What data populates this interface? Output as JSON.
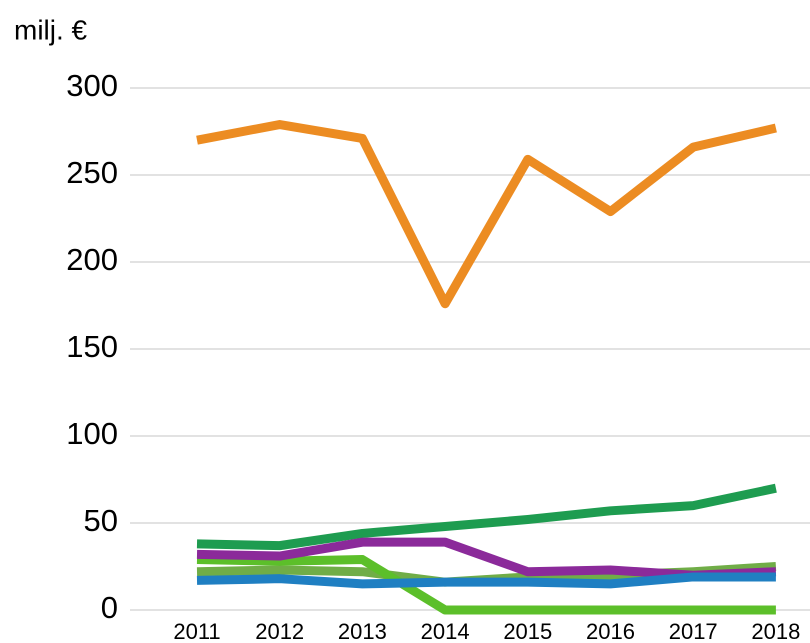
{
  "chart_data": {
    "type": "line",
    "title": "milj. €",
    "categories": [
      "2011",
      "2012",
      "2013",
      "2014",
      "2015",
      "2016",
      "2017",
      "2018"
    ],
    "series": [
      {
        "color": "#70ad47",
        "values": [
          22,
          23,
          22,
          16,
          19,
          20,
          22,
          25
        ]
      },
      {
        "color": "#5cbf2a",
        "values": [
          29,
          28,
          29,
          0,
          0,
          0,
          0,
          0
        ]
      },
      {
        "color": "#1e9c50",
        "values": [
          38,
          37,
          44,
          48,
          52,
          57,
          60,
          70
        ]
      },
      {
        "color": "#8b2a9a",
        "values": [
          32,
          31,
          39,
          39,
          22,
          23,
          20,
          22
        ]
      },
      {
        "color": "#1f7fc2",
        "values": [
          17,
          18,
          15,
          16,
          16,
          15,
          19,
          19
        ]
      },
      {
        "color": "#ec8c22",
        "values": [
          270,
          279,
          271,
          176,
          259,
          229,
          266,
          277
        ]
      }
    ],
    "ylim": [
      0,
      300
    ],
    "yticks": [
      0,
      50,
      100,
      150,
      200,
      250,
      300
    ],
    "grid": true
  }
}
